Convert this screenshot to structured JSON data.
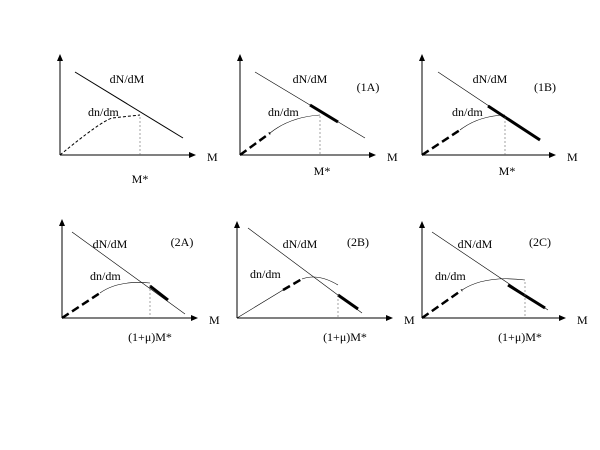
{
  "panels": [
    {
      "upper": "dN/dM",
      "lower": "dn/dm",
      "axis": "M",
      "mass": "M*"
    },
    {
      "upper": "dN/dM",
      "lower": "dn/dm",
      "axis": "M",
      "mass": "M*",
      "tag": "(1A)"
    },
    {
      "upper": "dN/dM",
      "lower": "dn/dm",
      "axis": "M",
      "mass": "M*",
      "tag": "(1B)"
    },
    {
      "upper": "dN/dM",
      "lower": "dn/dm",
      "axis": "M",
      "mass": "(1+μ)M*",
      "tag": "(2A)"
    },
    {
      "upper": "dN/dM",
      "lower": "dn/dm",
      "axis": "M",
      "mass": "(1+μ)M*",
      "tag": "(2B)"
    },
    {
      "upper": "dN/dM",
      "lower": "dn/dm",
      "axis": "M",
      "mass": "(1+μ)M*",
      "tag": "(2C)"
    }
  ]
}
